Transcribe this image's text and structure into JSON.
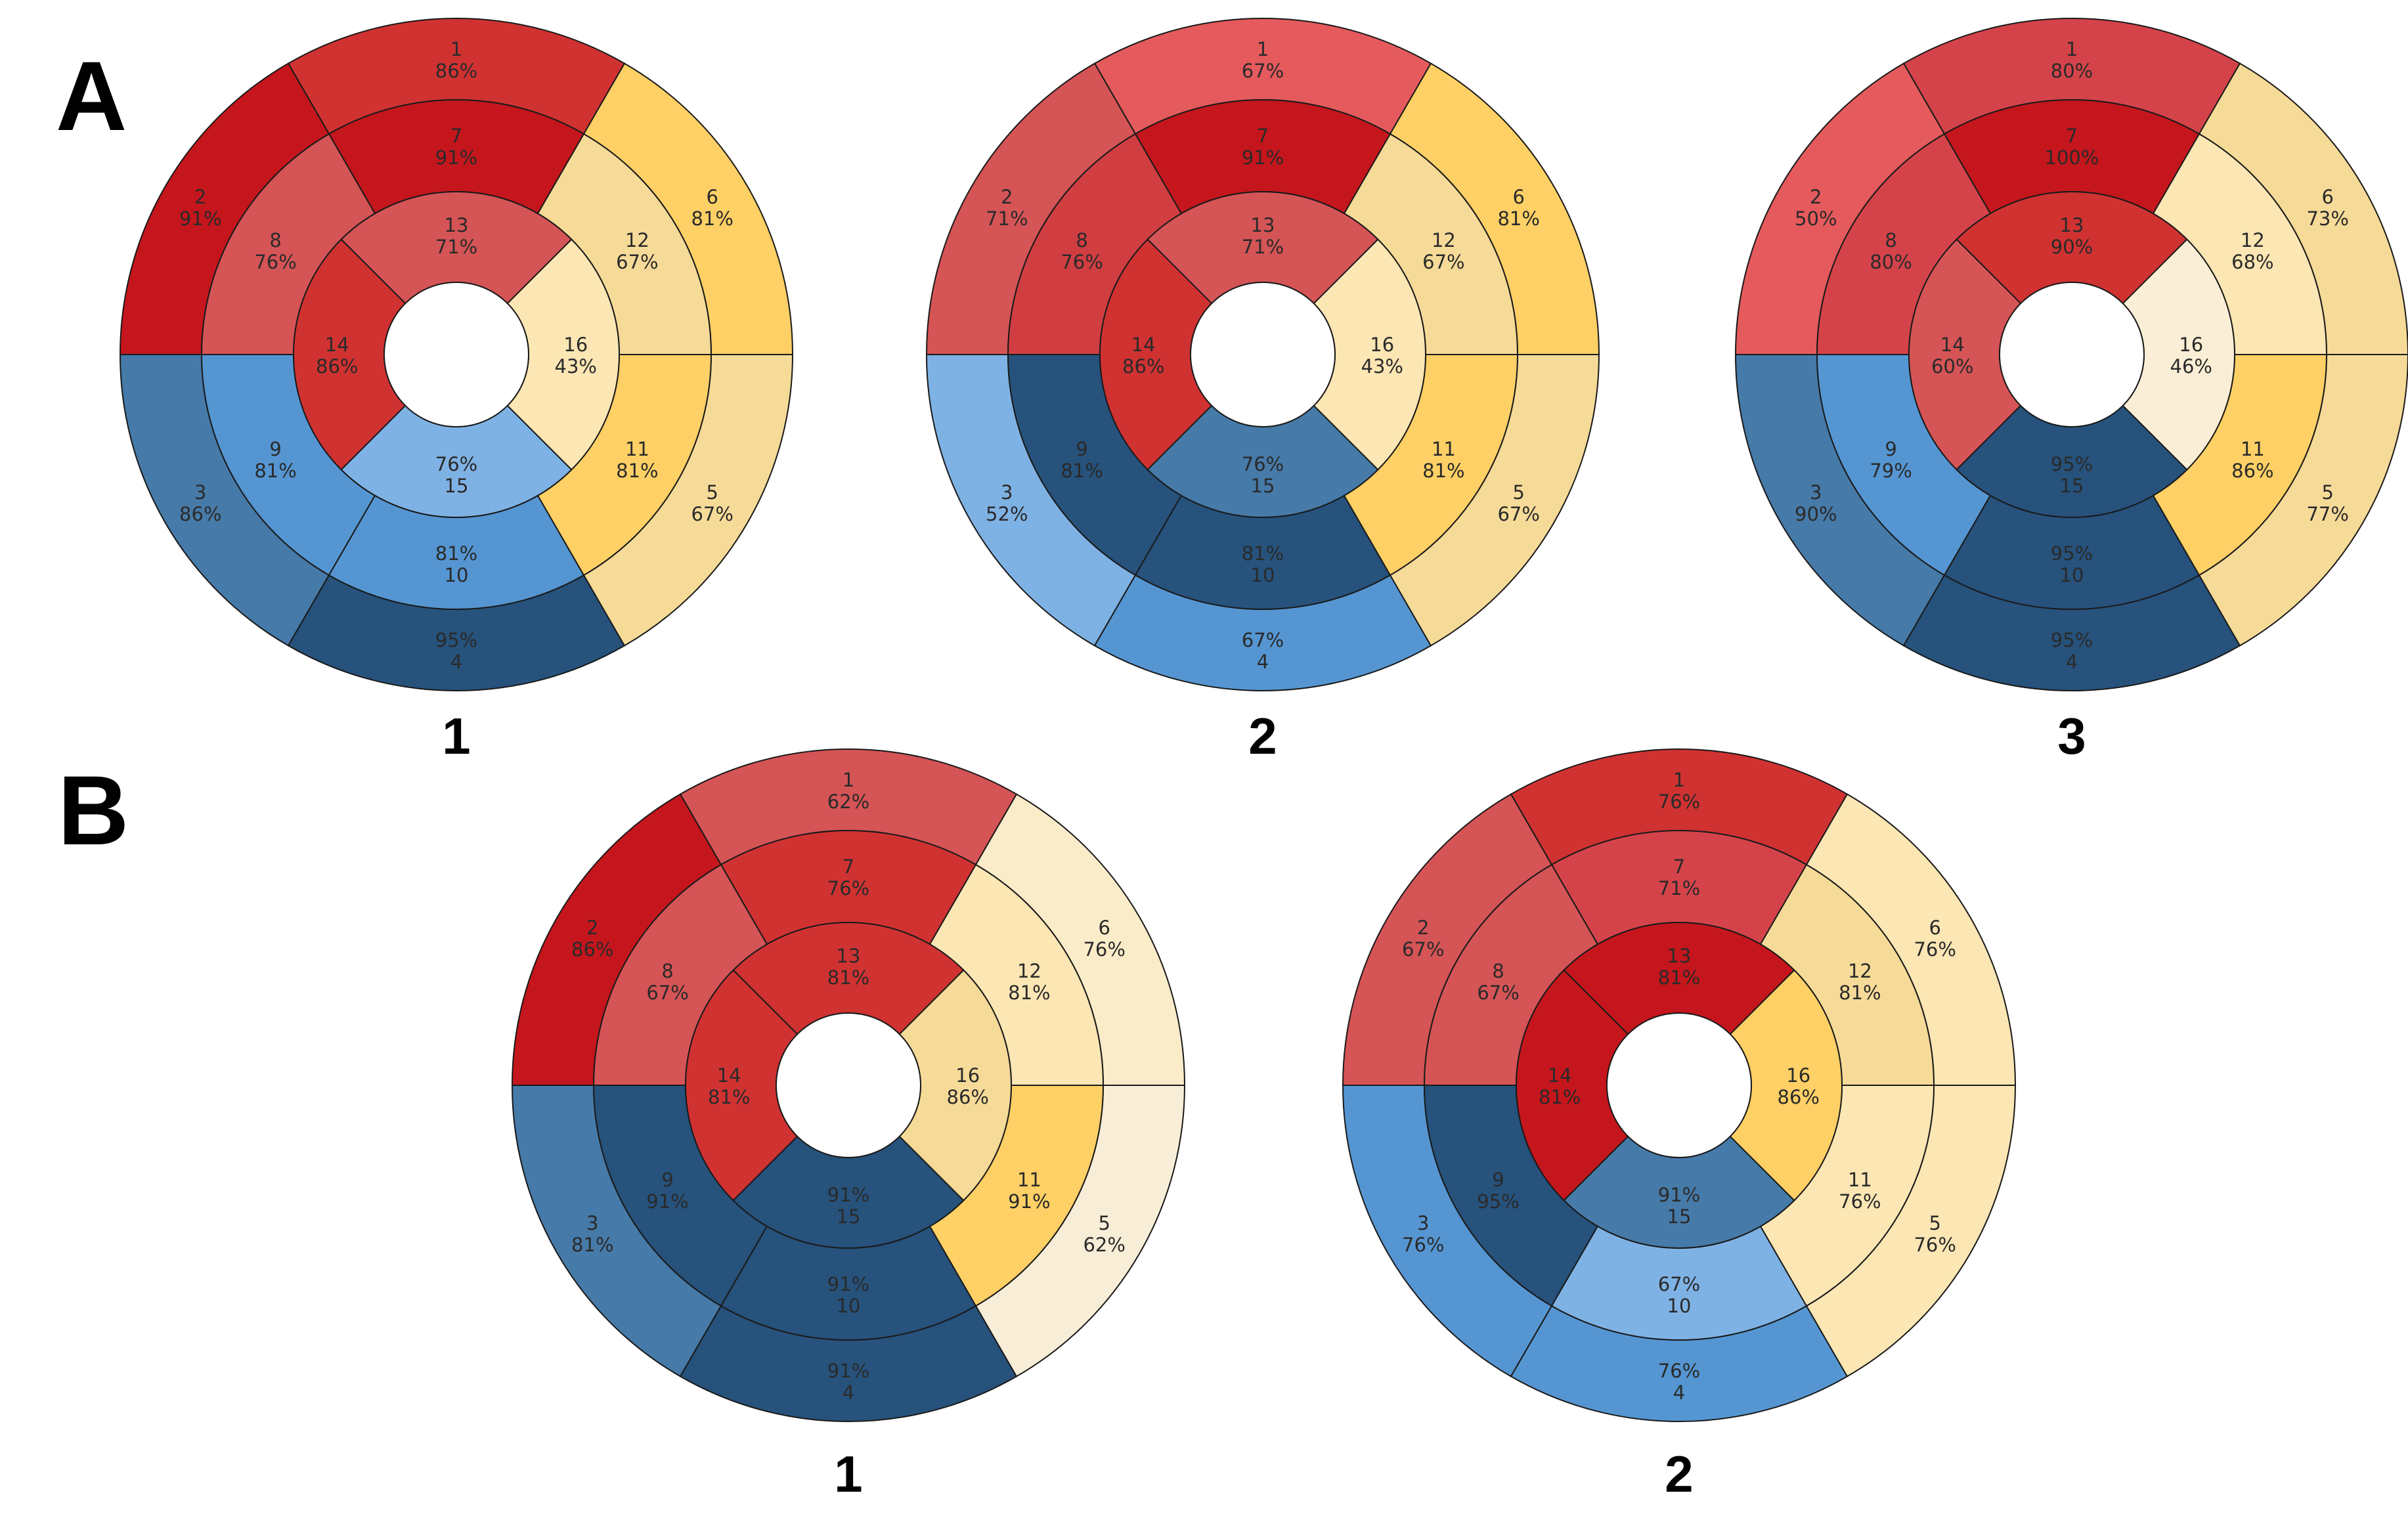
{
  "panels": [
    {
      "letter": "A",
      "diagrams": [
        {
          "label": "1",
          "segments": [
            {
              "id": "1",
              "pct": "86%",
              "color": "#d03232"
            },
            {
              "id": "2",
              "pct": "91%",
              "color": "#c4161c"
            },
            {
              "id": "3",
              "pct": "86%",
              "color": "#467aa8"
            },
            {
              "id": "4",
              "pct": "95%",
              "color": "#26527c"
            },
            {
              "id": "5",
              "pct": "67%",
              "color": "#f6da98"
            },
            {
              "id": "6",
              "pct": "81%",
              "color": "#fed065"
            },
            {
              "id": "7",
              "pct": "91%",
              "color": "#c4161c"
            },
            {
              "id": "8",
              "pct": "76%",
              "color": "#d55456"
            },
            {
              "id": "9",
              "pct": "81%",
              "color": "#5596d2"
            },
            {
              "id": "10",
              "pct": "81%",
              "color": "#5596d2"
            },
            {
              "id": "11",
              "pct": "81%",
              "color": "#fed065"
            },
            {
              "id": "12",
              "pct": "67%",
              "color": "#f6da98"
            },
            {
              "id": "13",
              "pct": "71%",
              "color": "#d55456"
            },
            {
              "id": "14",
              "pct": "86%",
              "color": "#d03232"
            },
            {
              "id": "15",
              "pct": "76%",
              "color": "#7fb2e4"
            },
            {
              "id": "16",
              "pct": "43%",
              "color": "#fbe6b4"
            }
          ]
        },
        {
          "label": "2",
          "segments": [
            {
              "id": "1",
              "pct": "67%",
              "color": "#e55a5c"
            },
            {
              "id": "2",
              "pct": "71%",
              "color": "#d55456"
            },
            {
              "id": "3",
              "pct": "52%",
              "color": "#7fb2e4"
            },
            {
              "id": "4",
              "pct": "67%",
              "color": "#5596d2"
            },
            {
              "id": "5",
              "pct": "67%",
              "color": "#f6da98"
            },
            {
              "id": "6",
              "pct": "81%",
              "color": "#fed065"
            },
            {
              "id": "7",
              "pct": "91%",
              "color": "#c4161c"
            },
            {
              "id": "8",
              "pct": "76%",
              "color": "#d03e42"
            },
            {
              "id": "9",
              "pct": "81%",
              "color": "#26527c"
            },
            {
              "id": "10",
              "pct": "81%",
              "color": "#26527c"
            },
            {
              "id": "11",
              "pct": "81%",
              "color": "#fed065"
            },
            {
              "id": "12",
              "pct": "67%",
              "color": "#f6da98"
            },
            {
              "id": "13",
              "pct": "71%",
              "color": "#d55456"
            },
            {
              "id": "14",
              "pct": "86%",
              "color": "#d03232"
            },
            {
              "id": "15",
              "pct": "76%",
              "color": "#467aa8"
            },
            {
              "id": "16",
              "pct": "43%",
              "color": "#fbe6b4"
            }
          ]
        },
        {
          "label": "3",
          "segments": [
            {
              "id": "1",
              "pct": "80%",
              "color": "#d5434a"
            },
            {
              "id": "2",
              "pct": "50%",
              "color": "#e55a5c"
            },
            {
              "id": "3",
              "pct": "90%",
              "color": "#467aa8"
            },
            {
              "id": "4",
              "pct": "95%",
              "color": "#26527c"
            },
            {
              "id": "5",
              "pct": "77%",
              "color": "#f6da98"
            },
            {
              "id": "6",
              "pct": "73%",
              "color": "#f6da98"
            },
            {
              "id": "7",
              "pct": "100%",
              "color": "#c4161c"
            },
            {
              "id": "8",
              "pct": "80%",
              "color": "#d5434a"
            },
            {
              "id": "9",
              "pct": "79%",
              "color": "#5596d2"
            },
            {
              "id": "10",
              "pct": "95%",
              "color": "#26527c"
            },
            {
              "id": "11",
              "pct": "86%",
              "color": "#fed065"
            },
            {
              "id": "12",
              "pct": "68%",
              "color": "#fbe6b4"
            },
            {
              "id": "13",
              "pct": "90%",
              "color": "#d03232"
            },
            {
              "id": "14",
              "pct": "60%",
              "color": "#d55456"
            },
            {
              "id": "15",
              "pct": "95%",
              "color": "#26527c"
            },
            {
              "id": "16",
              "pct": "46%",
              "color": "#faefd6"
            }
          ]
        }
      ]
    },
    {
      "letter": "B",
      "diagrams": [
        {
          "label": "1",
          "segments": [
            {
              "id": "1",
              "pct": "62%",
              "color": "#d55456"
            },
            {
              "id": "2",
              "pct": "86%",
              "color": "#c4161c"
            },
            {
              "id": "3",
              "pct": "81%",
              "color": "#467aa8"
            },
            {
              "id": "4",
              "pct": "91%",
              "color": "#26527c"
            },
            {
              "id": "5",
              "pct": "62%",
              "color": "#f8edd6"
            },
            {
              "id": "6",
              "pct": "76%",
              "color": "#faecc8"
            },
            {
              "id": "7",
              "pct": "76%",
              "color": "#d03232"
            },
            {
              "id": "8",
              "pct": "67%",
              "color": "#d55456"
            },
            {
              "id": "9",
              "pct": "91%",
              "color": "#26527c"
            },
            {
              "id": "10",
              "pct": "91%",
              "color": "#26527c"
            },
            {
              "id": "11",
              "pct": "91%",
              "color": "#fed065"
            },
            {
              "id": "12",
              "pct": "81%",
              "color": "#fbe6b4"
            },
            {
              "id": "13",
              "pct": "81%",
              "color": "#d03232"
            },
            {
              "id": "14",
              "pct": "81%",
              "color": "#d03232"
            },
            {
              "id": "15",
              "pct": "91%",
              "color": "#26527c"
            },
            {
              "id": "16",
              "pct": "86%",
              "color": "#f6da98"
            }
          ]
        },
        {
          "label": "2",
          "segments": [
            {
              "id": "1",
              "pct": "76%",
              "color": "#d03232"
            },
            {
              "id": "2",
              "pct": "67%",
              "color": "#d55456"
            },
            {
              "id": "3",
              "pct": "76%",
              "color": "#5596d2"
            },
            {
              "id": "4",
              "pct": "76%",
              "color": "#5596d2"
            },
            {
              "id": "5",
              "pct": "76%",
              "color": "#fbe6b4"
            },
            {
              "id": "6",
              "pct": "76%",
              "color": "#fbe6b4"
            },
            {
              "id": "7",
              "pct": "71%",
              "color": "#d5434a"
            },
            {
              "id": "8",
              "pct": "67%",
              "color": "#d55456"
            },
            {
              "id": "9",
              "pct": "95%",
              "color": "#26527c"
            },
            {
              "id": "10",
              "pct": "67%",
              "color": "#7fb2e4"
            },
            {
              "id": "11",
              "pct": "76%",
              "color": "#fbe6b4"
            },
            {
              "id": "12",
              "pct": "81%",
              "color": "#f6da98"
            },
            {
              "id": "13",
              "pct": "81%",
              "color": "#c4161c"
            },
            {
              "id": "14",
              "pct": "81%",
              "color": "#c4161c"
            },
            {
              "id": "15",
              "pct": "91%",
              "color": "#467aa8"
            },
            {
              "id": "16",
              "pct": "86%",
              "color": "#fed065"
            }
          ]
        }
      ]
    }
  ]
}
